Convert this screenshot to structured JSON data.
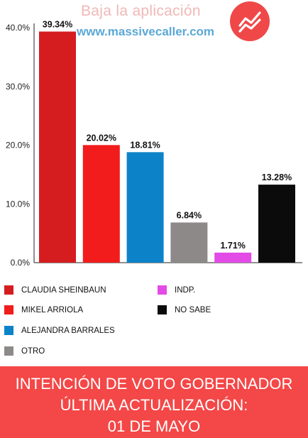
{
  "watermark": {
    "text": "Baja la aplicación",
    "url": "www.massivecaller.com",
    "logo_icon": "trend-line-icon",
    "logo_color": "#f04848"
  },
  "chart_data": {
    "type": "bar",
    "categories": [
      "CLAUDIA SHEINBAUN",
      "MIKEL ARRIOLA",
      "ALEJANDRA BARRALES",
      "OTRO",
      "INDP.",
      "NO SABE"
    ],
    "values": [
      39.34,
      20.02,
      18.81,
      6.84,
      1.71,
      13.28
    ],
    "value_labels": [
      "39.34%",
      "20.02%",
      "18.81%",
      "6.84%",
      "1.71%",
      "13.28%"
    ],
    "colors": [
      "#d51d20",
      "#f21c1c",
      "#0c83c9",
      "#8e8989",
      "#e24be5",
      "#0b0b0b"
    ],
    "ylim": [
      0,
      40
    ],
    "yticks": [
      {
        "value": 0,
        "label": "0.0%"
      },
      {
        "value": 10,
        "label": "10.0%"
      },
      {
        "value": 20,
        "label": "20.0%"
      },
      {
        "value": 30,
        "label": "30.0%"
      },
      {
        "value": 40,
        "label": "40.0%"
      }
    ],
    "grid": false,
    "legend_placement": "bottom"
  },
  "legend": {
    "items": [
      {
        "label": "CLAUDIA SHEINBAUN",
        "color": "#d51d20"
      },
      {
        "label": "INDP.",
        "color": "#e24be5"
      },
      {
        "label": "MIKEL ARRIOLA",
        "color": "#f21c1c"
      },
      {
        "label": "NO SABE",
        "color": "#0b0b0b"
      },
      {
        "label": "ALEJANDRA BARRALES",
        "color": "#0c83c9"
      },
      {
        "label": "OTRO",
        "color": "#8e8989"
      }
    ]
  },
  "footer": {
    "line1": "INTENCIÓN DE VOTO GOBERNADOR",
    "line2": "ÚLTIMA ACTUALIZACIÓN:",
    "line3": "01 DE MAYO",
    "background": "#f44747"
  }
}
